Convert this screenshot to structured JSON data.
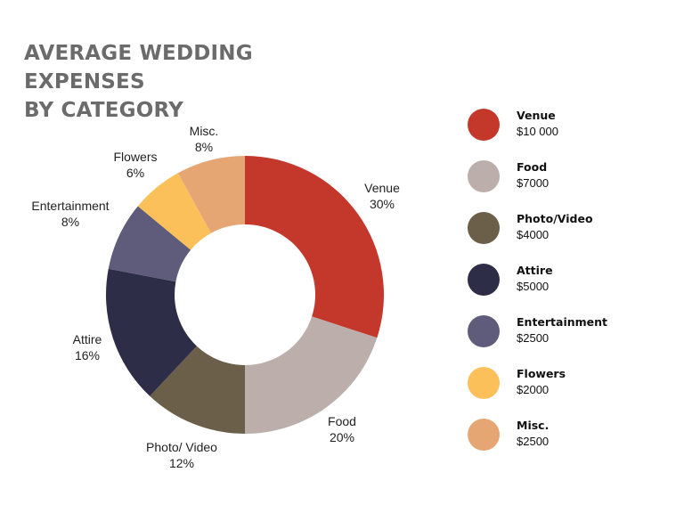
{
  "title_lines": [
    "AVERAGE WEDDING EXPENSES",
    "BY CATEGORY"
  ],
  "chart_data": {
    "type": "pie",
    "donut": true,
    "title": "AVERAGE WEDDING EXPENSES BY CATEGORY",
    "legend_position": "right",
    "slices": [
      {
        "label": "Venue",
        "pct_label": "30%",
        "value": 30,
        "color": "#c4382c"
      },
      {
        "label": "Food",
        "pct_label": "20%",
        "value": 20,
        "color": "#bcaeab"
      },
      {
        "label": "Photo/ Video",
        "pct_label": "12%",
        "value": 12,
        "color": "#6b5f4a"
      },
      {
        "label": "Attire",
        "pct_label": "16%",
        "value": 16,
        "color": "#2e2d47"
      },
      {
        "label": "Entertainment",
        "pct_label": "8%",
        "value": 8,
        "color": "#5e5c7a"
      },
      {
        "label": "Flowers",
        "pct_label": "6%",
        "value": 6,
        "color": "#fcc05a"
      },
      {
        "label": "Misc.",
        "pct_label": "8%",
        "value": 8,
        "color": "#e6a673"
      }
    ]
  },
  "legend": [
    {
      "name": "Venue",
      "value": "$10 000",
      "color": "#c4382c"
    },
    {
      "name": "Food",
      "value": "$7000",
      "color": "#bcaeab"
    },
    {
      "name": "Photo/Video",
      "value": "$4000",
      "color": "#6b5f4a"
    },
    {
      "name": "Attire",
      "value": "$5000",
      "color": "#2e2d47"
    },
    {
      "name": "Entertainment",
      "value": "$2500",
      "color": "#5e5c7a"
    },
    {
      "name": "Flowers",
      "value": "$2000",
      "color": "#fcc05a"
    },
    {
      "name": "Misc.",
      "value": "$2500",
      "color": "#e6a673"
    }
  ]
}
